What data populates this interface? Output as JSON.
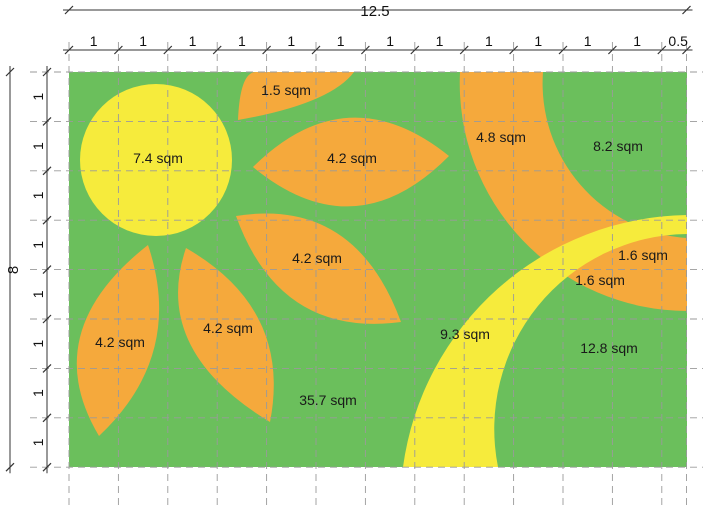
{
  "colors": {
    "field": "#6bbf5c",
    "orange": "#f5a93c",
    "yellow": "#f6eb3c",
    "grid": "#9a9a9a",
    "dim_line": "#333333"
  },
  "dimensions": {
    "total_width": "12.5",
    "total_height": "8",
    "top_segments": [
      "1",
      "1",
      "1",
      "1",
      "1",
      "1",
      "1",
      "1",
      "1",
      "1",
      "1",
      "1",
      "0.5"
    ],
    "left_segments": [
      "1",
      "1",
      "1",
      "1",
      "1",
      "1",
      "1",
      "1"
    ]
  },
  "areas": {
    "sun": "7.4 sqm",
    "petal_top": "1.5 sqm",
    "petal_upper_right": "4.2 sqm",
    "petal_middle": "4.2 sqm",
    "petal_lower_left": "4.2 sqm",
    "petal_lower_middle": "4.2 sqm",
    "green_field": "35.7 sqm",
    "orange_arc": "4.8 sqm",
    "green_top_right": "8.2 sqm",
    "green_small_right": "1.6 sqm",
    "orange_small_right": "1.6 sqm",
    "yellow_arc": "9.3 sqm",
    "green_bottom_right": "12.8 sqm"
  }
}
